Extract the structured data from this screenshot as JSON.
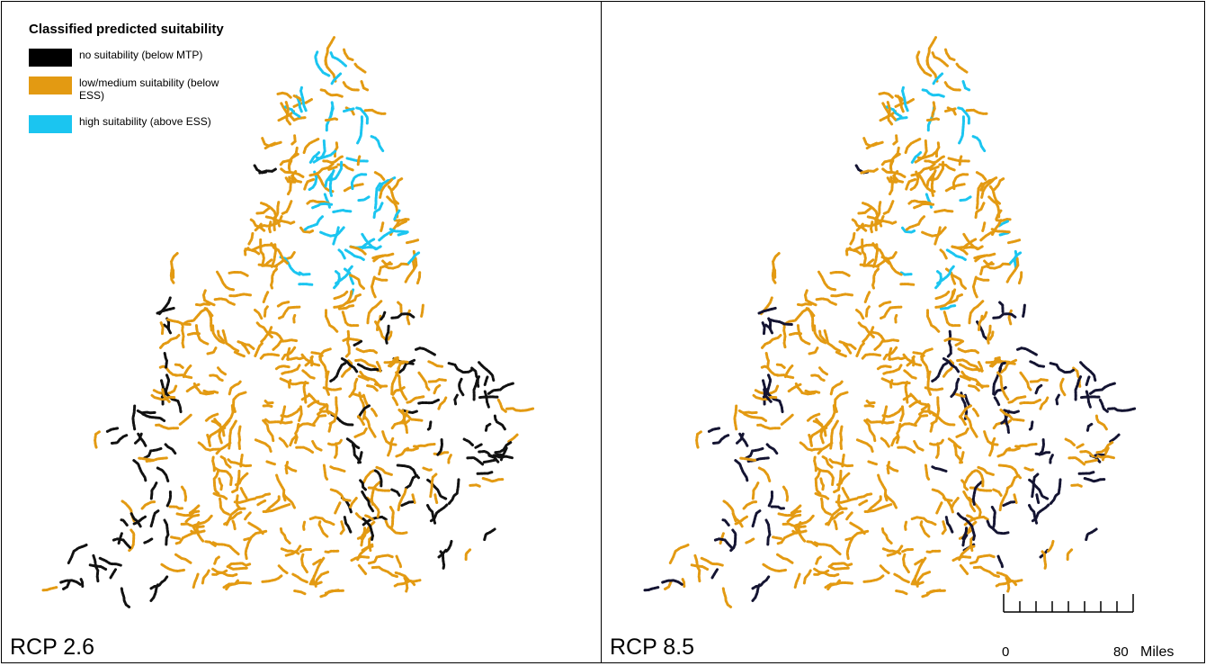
{
  "legend": {
    "title": "Classified predicted suitability",
    "items": [
      {
        "label": "no suitability (below MTP)",
        "color": "#000000"
      },
      {
        "label": "low/medium suitability (below ESS)",
        "color": "#E39A12"
      },
      {
        "label": "high suitability (above ESS)",
        "color": "#1BC5F0"
      }
    ]
  },
  "panels": [
    {
      "label": "RCP 2.6",
      "black_color": "#111111"
    },
    {
      "label": "RCP 8.5",
      "black_color": "#141432"
    }
  ],
  "scale_bar": {
    "zero_label": "0",
    "max_label": "80",
    "unit": "Miles"
  }
}
